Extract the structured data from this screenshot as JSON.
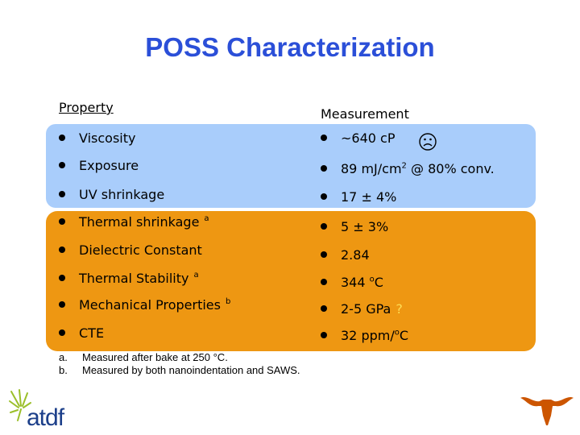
{
  "title": "POSS Characterization",
  "header": {
    "property": "Property",
    "measurement": "Measurement"
  },
  "rows": [
    {
      "property": "Viscosity",
      "measurement": "~640 cP"
    },
    {
      "property": "Exposure",
      "measurement_pre": "89 mJ/cm",
      "measurement_sup": "2",
      "measurement_post": " @ 80% conv."
    },
    {
      "property": "UV shrinkage",
      "measurement": "17 ± 4%"
    },
    {
      "property": "Thermal shrinkage",
      "note": "a",
      "measurement": "5 ± 3%"
    },
    {
      "property": "Dielectric Constant",
      "measurement": "2.84"
    },
    {
      "property": "Thermal Stability",
      "note": "a",
      "measurement_pre": "344 ",
      "measurement_sup": "o",
      "measurement_post": "C"
    },
    {
      "property": "Mechanical Properties",
      "note": "b",
      "measurement": "2-5 GPa",
      "flag": "?"
    },
    {
      "property": "CTE",
      "measurement_pre": "32 ppm/",
      "measurement_sup": "o",
      "measurement_post": "C"
    }
  ],
  "footnotes": [
    {
      "label": "a.",
      "text": "Measured after bake at 250 °C."
    },
    {
      "label": "b.",
      "text": "Measured by both nanoindentation and SAWS."
    }
  ],
  "logo": {
    "text": "atdf"
  },
  "colors": {
    "title": "#2b4fd8",
    "band_blue": "#a9cdfb",
    "band_orange": "#ee9712",
    "logo_blue": "#1c3f8a",
    "longhorn": "#cc5500"
  },
  "icons": {
    "viscosity_status": "frowning-face-icon",
    "longhorn": "longhorn-logo-icon"
  }
}
